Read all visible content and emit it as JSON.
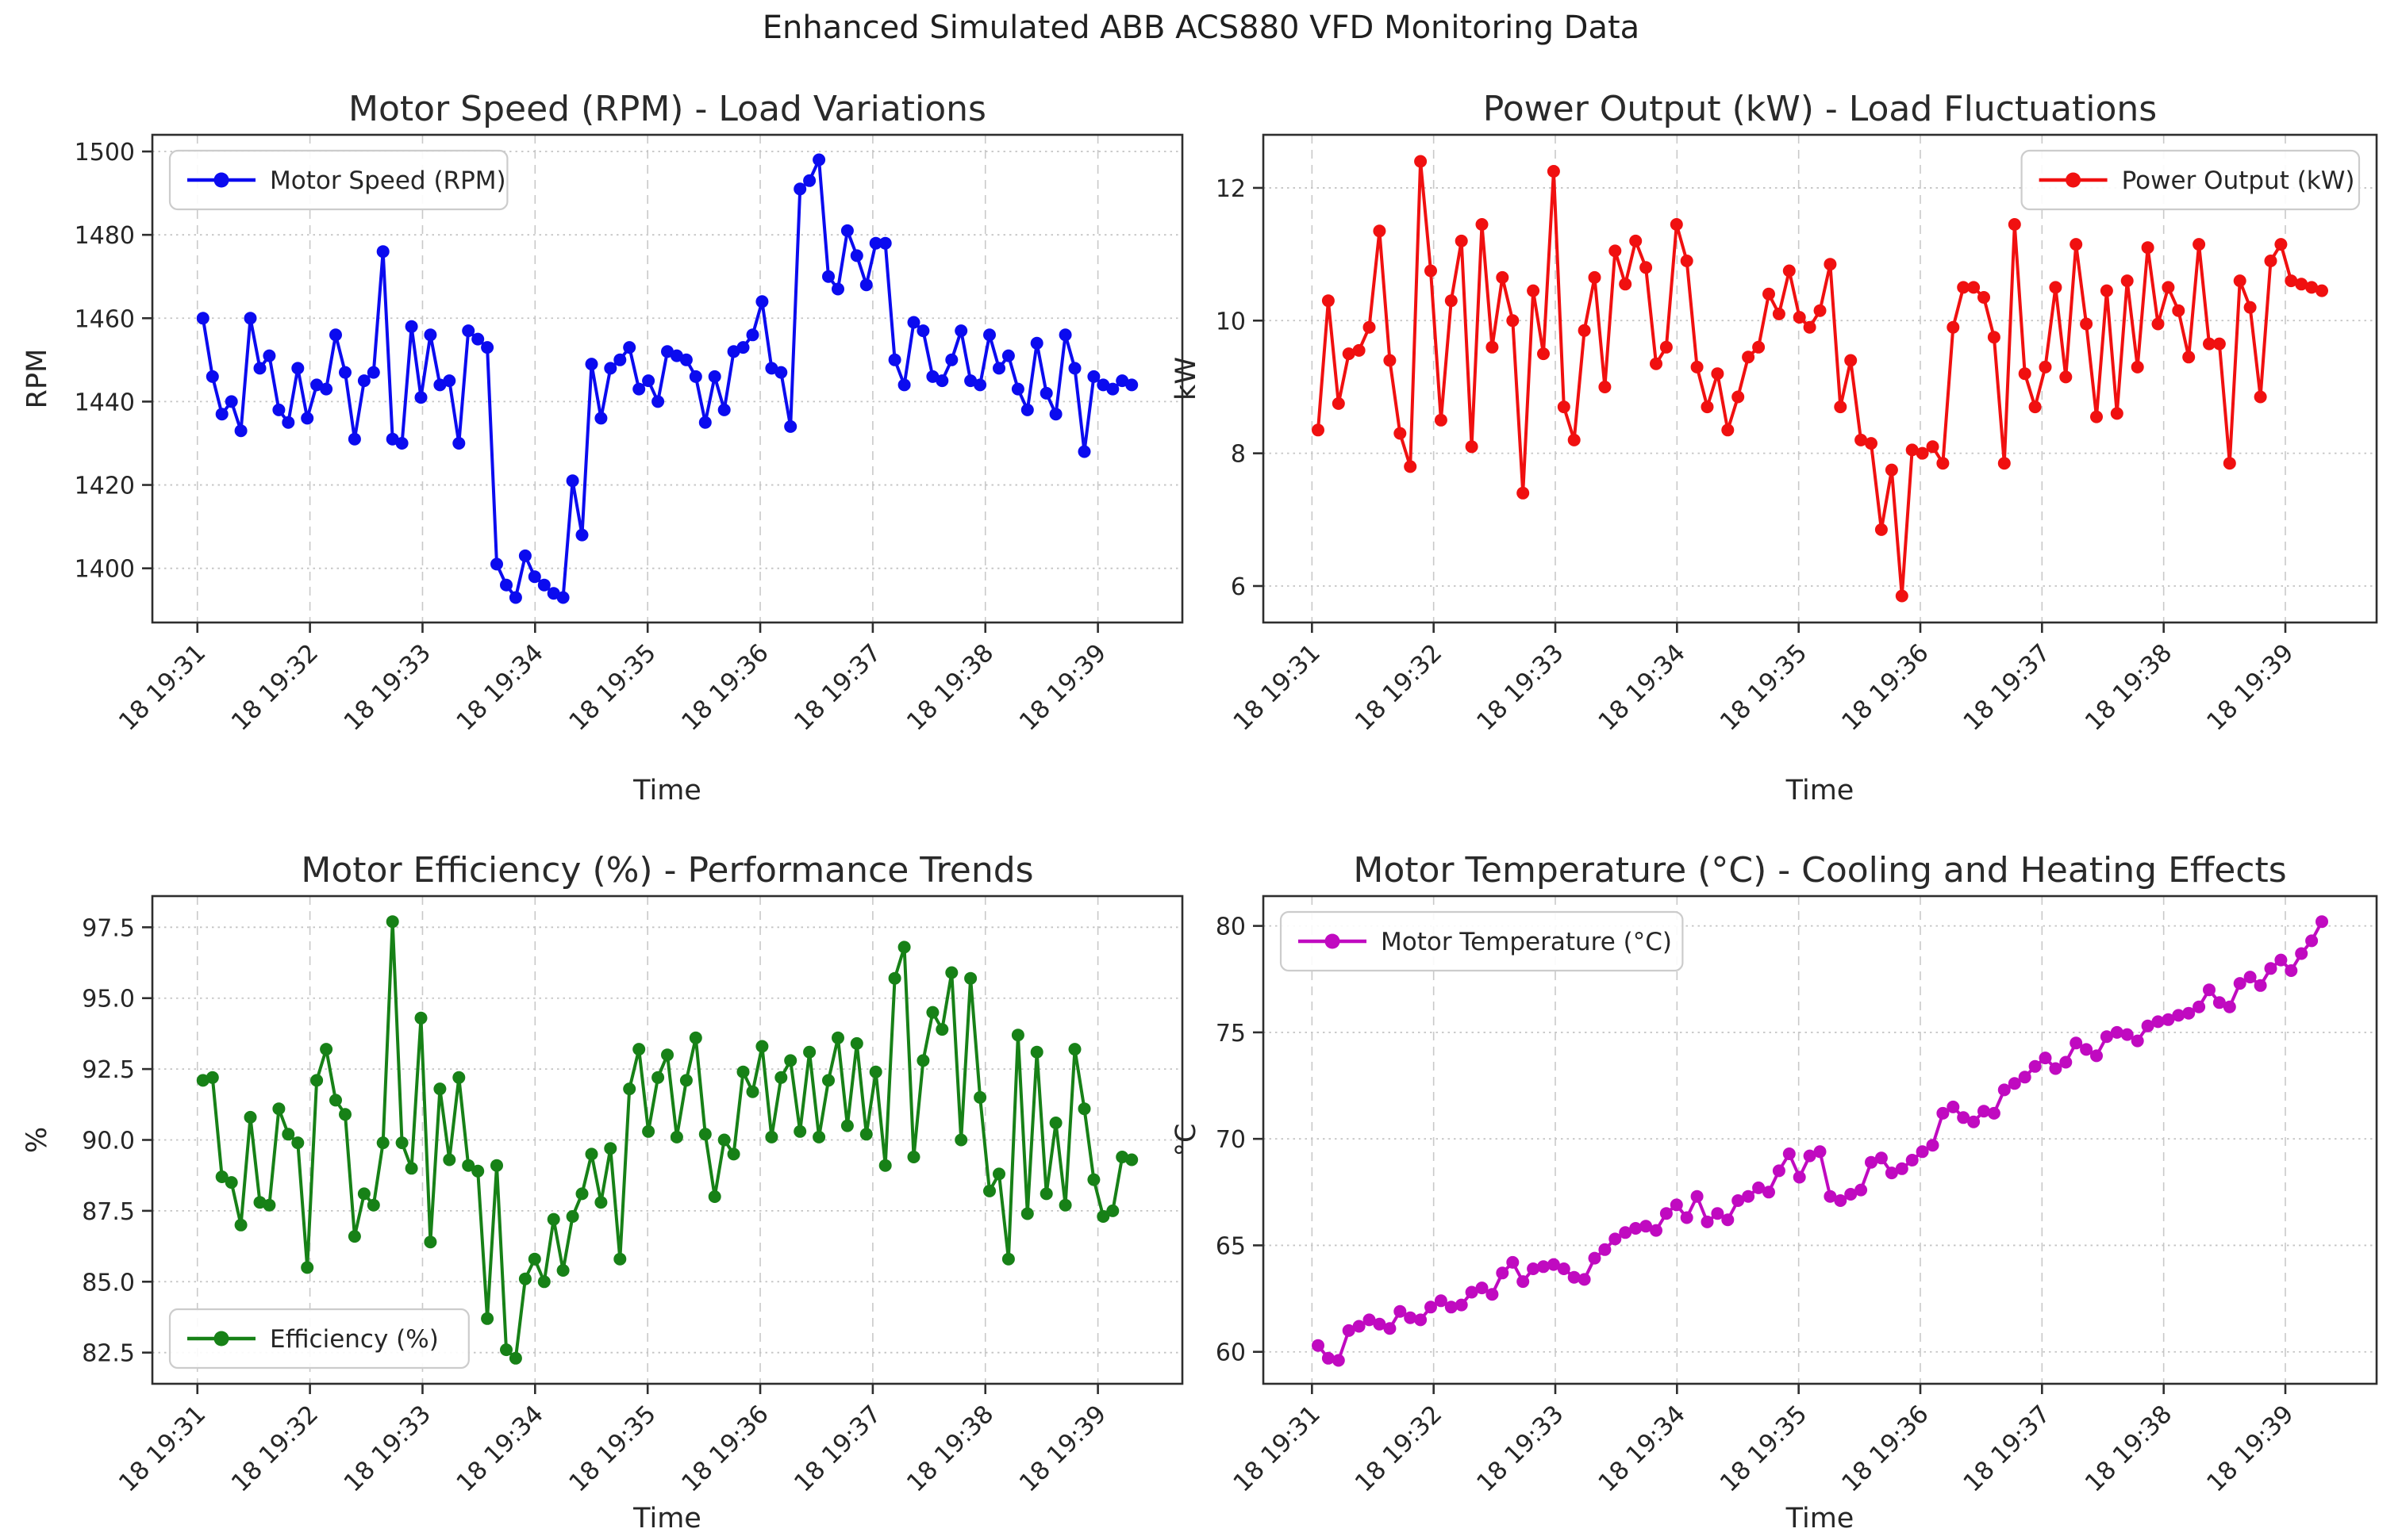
{
  "page": {
    "suptitle": "Enhanced Simulated ABB ACS880 VFD Monitoring Data",
    "background_color": "#ffffff",
    "text_color": "#1f1f1f"
  },
  "chart_data": {
    "type": "line",
    "x_axis": {
      "axis_label": "Time",
      "tick_values": [
        31,
        32,
        33,
        34,
        35,
        36,
        37,
        38,
        39
      ],
      "tick_labels": [
        "18 19:31",
        "18 19:32",
        "18 19:33",
        "18 19:34",
        "18 19:35",
        "18 19:36",
        "18 19:37",
        "18 19:38",
        "18 19:39"
      ],
      "xlim": [
        30.6,
        39.75
      ],
      "x_start": 31.05,
      "x_step": 0.0841837,
      "grid": true
    },
    "charts": [
      {
        "id": "motor-speed",
        "title": "Motor Speed (RPM) - Load Variations",
        "ylabel": "RPM",
        "legend": {
          "label": "Motor Speed (RPM)",
          "position": "upper-left"
        },
        "color": "#0b0bef",
        "ylim": [
          1387,
          1504
        ],
        "yticks": [
          1400,
          1420,
          1440,
          1460,
          1480,
          1500
        ],
        "ytick_decimals": 0,
        "values": [
          1460,
          1446,
          1437,
          1440,
          1433,
          1460,
          1448,
          1451,
          1438,
          1435,
          1448,
          1436,
          1444,
          1443,
          1456,
          1447,
          1431,
          1445,
          1447,
          1476,
          1431,
          1430,
          1458,
          1441,
          1456,
          1444,
          1445,
          1430,
          1457,
          1455,
          1453,
          1401,
          1396,
          1393,
          1403,
          1398,
          1396,
          1394,
          1393,
          1421,
          1408,
          1449,
          1436,
          1448,
          1450,
          1453,
          1443,
          1445,
          1440,
          1452,
          1451,
          1450,
          1446,
          1435,
          1446,
          1438,
          1452,
          1453,
          1456,
          1464,
          1448,
          1447,
          1434,
          1491,
          1493,
          1498,
          1470,
          1467,
          1481,
          1475,
          1468,
          1478,
          1478,
          1450,
          1444,
          1459,
          1457,
          1446,
          1445,
          1450,
          1457,
          1445,
          1444,
          1456,
          1448,
          1451,
          1443,
          1438,
          1454,
          1442,
          1437,
          1456,
          1448,
          1428,
          1446,
          1444,
          1443,
          1445,
          1444
        ]
      },
      {
        "id": "power-output",
        "title": "Power Output (kW) - Load Fluctuations",
        "ylabel": "kW",
        "legend": {
          "label": "Power Output (kW)",
          "position": "upper-right"
        },
        "color": "#f01010",
        "ylim": [
          5.45,
          12.8
        ],
        "yticks": [
          6,
          8,
          10,
          12
        ],
        "ytick_decimals": 0,
        "values": [
          8.35,
          10.3,
          8.75,
          9.5,
          9.55,
          9.9,
          11.35,
          9.4,
          8.3,
          7.8,
          12.4,
          10.75,
          8.5,
          10.3,
          11.2,
          8.1,
          11.45,
          9.6,
          10.65,
          10.0,
          7.4,
          10.45,
          9.5,
          12.25,
          8.7,
          8.2,
          9.85,
          10.65,
          9.0,
          11.05,
          10.55,
          11.2,
          10.8,
          9.35,
          9.6,
          11.45,
          10.9,
          9.3,
          8.7,
          9.2,
          8.35,
          8.85,
          9.45,
          9.6,
          10.4,
          10.1,
          10.75,
          10.05,
          9.9,
          10.15,
          10.85,
          8.7,
          9.4,
          8.2,
          8.15,
          6.85,
          7.75,
          5.85,
          8.05,
          8.0,
          8.1,
          7.85,
          9.9,
          10.5,
          10.5,
          10.35,
          9.75,
          7.85,
          11.45,
          9.2,
          8.7,
          9.3,
          10.5,
          9.15,
          11.15,
          9.95,
          8.55,
          10.45,
          8.6,
          10.6,
          9.3,
          11.1,
          9.95,
          10.5,
          10.15,
          9.45,
          11.15,
          9.65,
          9.65,
          7.85,
          10.6,
          10.2,
          8.85,
          10.9,
          11.15,
          10.6,
          10.55,
          10.5,
          10.45
        ]
      },
      {
        "id": "motor-efficiency",
        "title": "Motor Efficiency (%) - Performance Trends",
        "ylabel": "%",
        "legend": {
          "label": "Efficiency (%)",
          "position": "lower-left"
        },
        "color": "#178117",
        "ylim": [
          81.4,
          98.6
        ],
        "yticks": [
          82.5,
          85.0,
          87.5,
          90.0,
          92.5,
          95.0,
          97.5
        ],
        "ytick_decimals": 1,
        "values": [
          92.1,
          92.2,
          88.7,
          88.5,
          87.0,
          90.8,
          87.8,
          87.7,
          91.1,
          90.2,
          89.9,
          85.5,
          92.1,
          93.2,
          91.4,
          90.9,
          86.6,
          88.1,
          87.7,
          89.9,
          97.7,
          89.9,
          89.0,
          94.3,
          86.4,
          91.8,
          89.3,
          92.2,
          89.1,
          88.9,
          83.7,
          89.1,
          82.6,
          82.3,
          85.1,
          85.8,
          85.0,
          87.2,
          85.4,
          87.3,
          88.1,
          89.5,
          87.8,
          89.7,
          85.8,
          91.8,
          93.2,
          90.3,
          92.2,
          93.0,
          90.1,
          92.1,
          93.6,
          90.2,
          88.0,
          90.0,
          89.5,
          92.4,
          91.7,
          93.3,
          90.1,
          92.2,
          92.8,
          90.3,
          93.1,
          90.1,
          92.1,
          93.6,
          90.5,
          93.4,
          90.2,
          92.4,
          89.1,
          95.7,
          96.8,
          89.4,
          92.8,
          94.5,
          93.9,
          95.9,
          90.0,
          95.7,
          91.5,
          88.2,
          88.8,
          85.8,
          93.7,
          87.4,
          93.1,
          88.1,
          90.6,
          87.7,
          93.2,
          91.1,
          88.6,
          87.3,
          87.5,
          89.4,
          89.3
        ]
      },
      {
        "id": "motor-temperature",
        "title": "Motor Temperature (°C) - Cooling and Heating Effects",
        "ylabel": "°C",
        "legend": {
          "label": "Motor Temperature (°C)",
          "position": "upper-left"
        },
        "color": "#c00ac0",
        "ylim": [
          58.5,
          81.4
        ],
        "yticks": [
          60,
          65,
          70,
          75,
          80
        ],
        "ytick_decimals": 0,
        "values": [
          60.3,
          59.7,
          59.6,
          61.0,
          61.2,
          61.5,
          61.3,
          61.1,
          61.9,
          61.6,
          61.5,
          62.1,
          62.4,
          62.1,
          62.2,
          62.8,
          63.0,
          62.7,
          63.7,
          64.2,
          63.3,
          63.9,
          64.0,
          64.1,
          63.9,
          63.5,
          63.4,
          64.4,
          64.8,
          65.3,
          65.6,
          65.8,
          65.9,
          65.7,
          66.5,
          66.9,
          66.3,
          67.3,
          66.1,
          66.5,
          66.2,
          67.1,
          67.3,
          67.7,
          67.5,
          68.5,
          69.3,
          68.2,
          69.2,
          69.4,
          67.3,
          67.1,
          67.4,
          67.6,
          68.9,
          69.1,
          68.4,
          68.6,
          69.0,
          69.4,
          69.7,
          71.2,
          71.5,
          71.0,
          70.8,
          71.3,
          71.2,
          72.3,
          72.6,
          72.9,
          73.4,
          73.8,
          73.3,
          73.6,
          74.5,
          74.2,
          73.9,
          74.8,
          75.0,
          74.9,
          74.6,
          75.3,
          75.5,
          75.6,
          75.8,
          75.9,
          76.2,
          77.0,
          76.4,
          76.2,
          77.3,
          77.6,
          77.2,
          78.0,
          78.4,
          77.9,
          78.7,
          79.3,
          80.2
        ]
      }
    ]
  }
}
